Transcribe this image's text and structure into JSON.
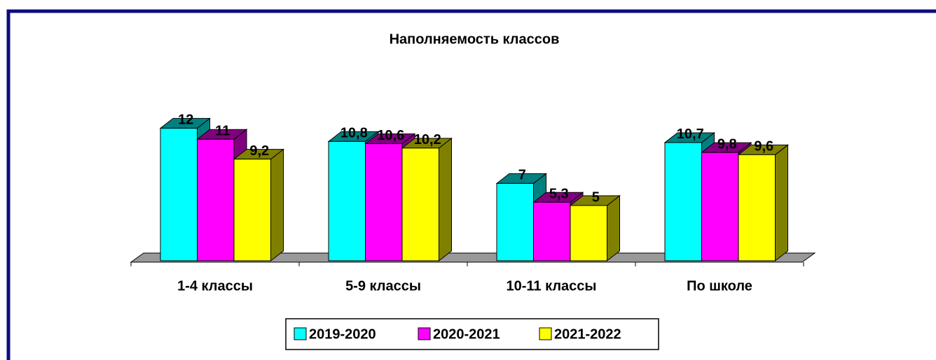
{
  "chart_data": {
    "type": "bar3d",
    "title": "Наполняемость классов",
    "categories": [
      "1-4 классы",
      "5-9 классы",
      "10-11 классы",
      "По школе"
    ],
    "series": [
      {
        "name": "2019-2020",
        "color": "#00ffff",
        "values": [
          12,
          10.8,
          7,
          10.7
        ],
        "value_labels": [
          "12",
          "10,8",
          "7",
          "10,7"
        ]
      },
      {
        "name": "2020-2021",
        "color": "#ff00ff",
        "values": [
          11,
          10.6,
          5.3,
          9.8
        ],
        "value_labels": [
          "11",
          "10,6",
          "5,3",
          "9,8"
        ]
      },
      {
        "name": "2021-2022",
        "color": "#ffff00",
        "values": [
          9.2,
          10.2,
          5,
          9.6
        ],
        "value_labels": [
          "9,2",
          "10,2",
          "5",
          "9,6"
        ]
      }
    ],
    "legend": "bottom"
  }
}
